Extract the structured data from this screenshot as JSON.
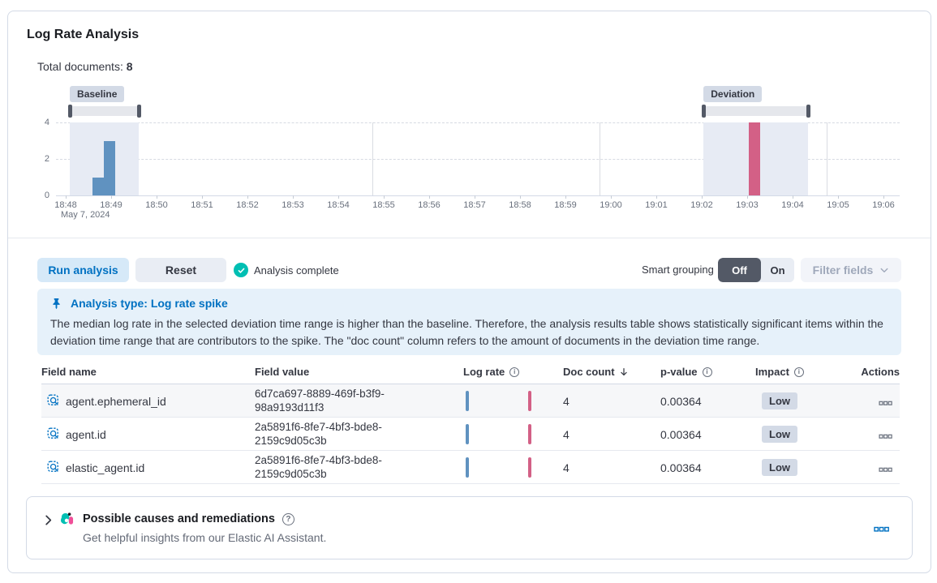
{
  "panel": {
    "title": "Log Rate Analysis",
    "total_documents_label": "Total documents:",
    "total_documents_value": "8"
  },
  "chart_data": {
    "type": "bar",
    "title": "Log rate histogram",
    "date_label": "May 7, 2024",
    "x_tick_labels": [
      "18:48",
      "18:49",
      "18:50",
      "18:51",
      "18:52",
      "18:53",
      "18:54",
      "18:55",
      "18:56",
      "18:57",
      "18:58",
      "18:59",
      "19:00",
      "19:01",
      "19:02",
      "19:03",
      "19:04",
      "19:05",
      "19:06"
    ],
    "x_span_minutes": 18,
    "y_ticks": [
      0,
      2,
      4
    ],
    "ylim": [
      0,
      4
    ],
    "vertical_gridlines_min": [
      6.75,
      11.75,
      16.75
    ],
    "series": [
      {
        "name": "baseline doc count",
        "color": "#6092c0",
        "bars": [
          {
            "time": "18:48:40",
            "count": 1,
            "offset_min": 0.59,
            "width_min": 0.25
          },
          {
            "time": "18:48:55",
            "count": 3,
            "offset_min": 0.84,
            "width_min": 0.25
          }
        ]
      },
      {
        "name": "deviation doc count",
        "color": "#d36086",
        "bars": [
          {
            "time": "19:03:10",
            "count": 4,
            "offset_min": 15.04,
            "width_min": 0.25
          }
        ]
      }
    ],
    "windows": [
      {
        "label": "Baseline",
        "from": "18:48:05",
        "to": "18:49:35",
        "from_min": 0.09,
        "to_min": 1.61
      },
      {
        "label": "Deviation",
        "from": "19:02:00",
        "to": "19:04:20",
        "from_min": 14.04,
        "to_min": 16.34
      }
    ],
    "legend": "off"
  },
  "controls": {
    "run_label": "Run analysis",
    "reset_label": "Reset",
    "status_text": "Analysis complete",
    "smart_grouping_label": "Smart grouping",
    "smart_grouping_off": "Off",
    "smart_grouping_on": "On",
    "smart_grouping_selected": "Off",
    "filter_fields_label": "Filter fields"
  },
  "callout": {
    "title": "Analysis type: Log rate spike",
    "body": "The median log rate in the selected deviation time range is higher than the baseline. Therefore, the analysis results table shows statistically significant items within the deviation time range that are contributors to the spike. The \"doc count\" column refers to the amount of documents in the deviation time range."
  },
  "table": {
    "headers": [
      "Field name",
      "Field value",
      "Log rate",
      "Doc count",
      "p-value",
      "Impact",
      "Actions"
    ],
    "sorted_by": "Doc count",
    "sort_direction": "descending",
    "rows": [
      {
        "field_name": "agent.ephemeral_id",
        "field_value": "6d7ca697-8889-469f-b3f9-98a9193d11f3",
        "doc_count": "4",
        "p_value": "0.00364",
        "impact": "Low"
      },
      {
        "field_name": "agent.id",
        "field_value": "2a5891f6-8fe7-4bf3-bde8-2159c9d05c3b",
        "doc_count": "4",
        "p_value": "0.00364",
        "impact": "Low"
      },
      {
        "field_name": "elastic_agent.id",
        "field_value": "2a5891f6-8fe7-4bf3-bde8-2159c9d05c3b",
        "doc_count": "4",
        "p_value": "0.00364",
        "impact": "Low"
      }
    ]
  },
  "causes_panel": {
    "title": "Possible causes and remediations",
    "subtitle": "Get helpful insights from our Elastic AI Assistant."
  },
  "icons": {
    "info_glyph": "i",
    "question_glyph": "?"
  },
  "colors": {
    "primary_blue": "#0071c2",
    "bar_baseline": "#6092c0",
    "bar_deviation": "#d36086",
    "success_teal": "#00bfb3",
    "badge_gray": "#d3dae6",
    "callout_bg": "#e6f1fa"
  }
}
